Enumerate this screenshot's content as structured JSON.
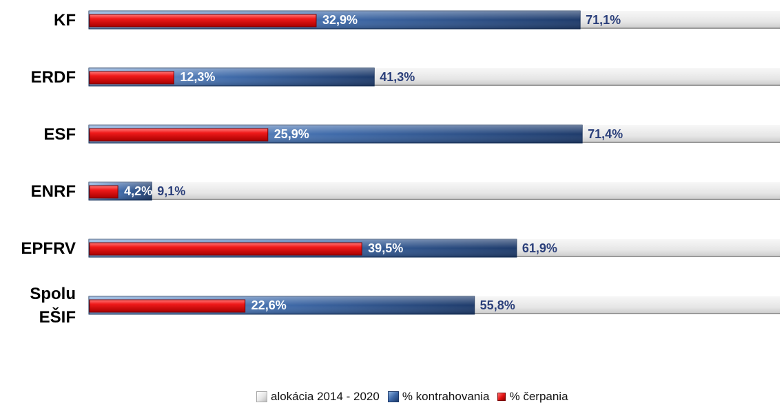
{
  "chart_data": {
    "type": "bar",
    "orientation": "horizontal",
    "categories": [
      "KF",
      "ERDF",
      "ESF",
      "ENRF",
      "EPFRV",
      "Spolu EŠIF"
    ],
    "category_lines": [
      [
        "KF"
      ],
      [
        "ERDF"
      ],
      [
        "ESF"
      ],
      [
        "ENRF"
      ],
      [
        "EPFRV"
      ],
      [
        "Spolu",
        "EŠIF"
      ]
    ],
    "series": [
      {
        "name": "alokácia 2014 - 2020",
        "values": [
          100,
          100,
          100,
          100,
          100,
          100
        ],
        "color": "#e6e6e6"
      },
      {
        "name": "% kontrahovania",
        "values": [
          71.1,
          41.3,
          71.4,
          9.1,
          61.9,
          55.8
        ],
        "labels": [
          "71,1%",
          "41,3%",
          "71,4%",
          "9,1%",
          "61,9%",
          "55,8%"
        ],
        "color": "#3d68a8"
      },
      {
        "name": "% čerpania",
        "values": [
          32.9,
          12.3,
          25.9,
          4.2,
          39.5,
          22.6
        ],
        "labels": [
          "32,9%",
          "12,3%",
          "25,9%",
          "4,2%",
          "39,5%",
          "22,6%"
        ],
        "color": "#e01010"
      }
    ],
    "xlim": [
      0,
      100
    ],
    "grid": false,
    "legend_position": "bottom"
  }
}
